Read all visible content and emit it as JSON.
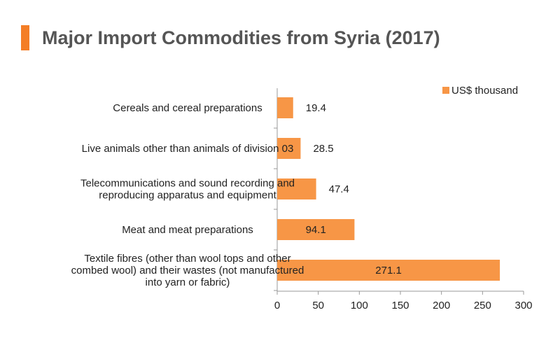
{
  "header": {
    "title": "Major Import Commodities from Syria (2017)"
  },
  "colors": {
    "accent": "#f47e26",
    "bar": "#f79646"
  },
  "chart_data": {
    "type": "bar",
    "orientation": "horizontal",
    "title": "Major Import Commodities from Syria (2017)",
    "categories": [
      [
        "Cereals and cereal preparations"
      ],
      [
        "Live animals other than animals of division 03"
      ],
      [
        "Telecommunications and sound recording and",
        "reproducing apparatus and equipment"
      ],
      [
        "Meat and meat preparations"
      ],
      [
        "Textile fibres (other than wool tops and other",
        "combed wool) and their wastes (not manufactured",
        "into yarn or fabric)"
      ]
    ],
    "series": [
      {
        "name": "US$ thousand",
        "values": [
          19.4,
          28.5,
          47.4,
          94.1,
          271.1
        ]
      }
    ],
    "xlim": [
      0,
      300
    ],
    "xticks": [
      0,
      50,
      100,
      150,
      200,
      250,
      300
    ],
    "legend": "top-right",
    "grid": false
  }
}
